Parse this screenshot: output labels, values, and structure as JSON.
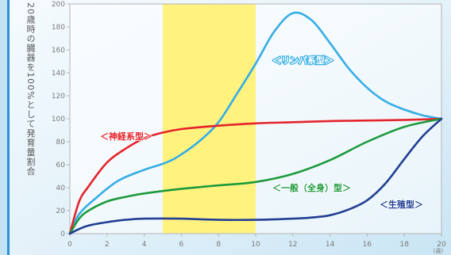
{
  "chart_data": {
    "type": "line",
    "ylabel": "20歳時の臓器を100%として発育量割合",
    "x_unit": "(歳)",
    "xlim": [
      0,
      20
    ],
    "ylim": [
      0,
      200
    ],
    "x_ticks": [
      0,
      2,
      4,
      6,
      8,
      10,
      12,
      14,
      16,
      18,
      20
    ],
    "y_ticks": [
      0,
      20,
      40,
      60,
      80,
      100,
      120,
      140,
      160,
      180,
      200
    ],
    "grid": false,
    "legend": "inline",
    "highlight_x_range": [
      5,
      10
    ],
    "highlight_color": "#fff27f",
    "series": [
      {
        "name": "＜リンパ系型＞",
        "color": "#35ade6",
        "x": [
          0,
          0.5,
          1.4,
          2.6,
          3.9,
          5.2,
          6,
          7,
          8,
          9,
          10,
          11,
          12,
          13,
          14,
          15,
          16,
          17,
          18,
          19,
          20
        ],
        "y": [
          0,
          17,
          31,
          46,
          55,
          62,
          69,
          81,
          97,
          122,
          148,
          176,
          192,
          186,
          166,
          144,
          127,
          115,
          108,
          103,
          100
        ]
      },
      {
        "name": "＜神経系型＞",
        "color": "#e5232b",
        "x": [
          0,
          0.5,
          1,
          2,
          3,
          4,
          5,
          6,
          8,
          10,
          12,
          14,
          16,
          18,
          20
        ],
        "y": [
          0,
          28,
          41,
          62,
          74,
          83,
          88,
          91,
          94,
          96,
          97,
          98,
          98.5,
          99,
          100
        ]
      },
      {
        "name": "＜一般（全身）型＞",
        "color": "#1d9a3c",
        "x": [
          0,
          0.5,
          1,
          2,
          3,
          4,
          6,
          8,
          10,
          12,
          14,
          16,
          18,
          20
        ],
        "y": [
          0,
          13,
          20,
          28,
          32,
          35,
          39,
          42,
          45,
          52,
          64,
          80,
          93,
          100
        ]
      },
      {
        "name": "＜生殖型＞",
        "color": "#203e92",
        "x": [
          0,
          0.5,
          1,
          2,
          3,
          4,
          6,
          8,
          10,
          12,
          13,
          14,
          15,
          16,
          17,
          18,
          19,
          20
        ],
        "y": [
          0,
          4,
          7,
          10,
          12,
          13,
          13,
          12,
          12,
          13,
          14,
          16,
          21,
          29,
          44,
          65,
          85,
          100
        ]
      }
    ]
  }
}
